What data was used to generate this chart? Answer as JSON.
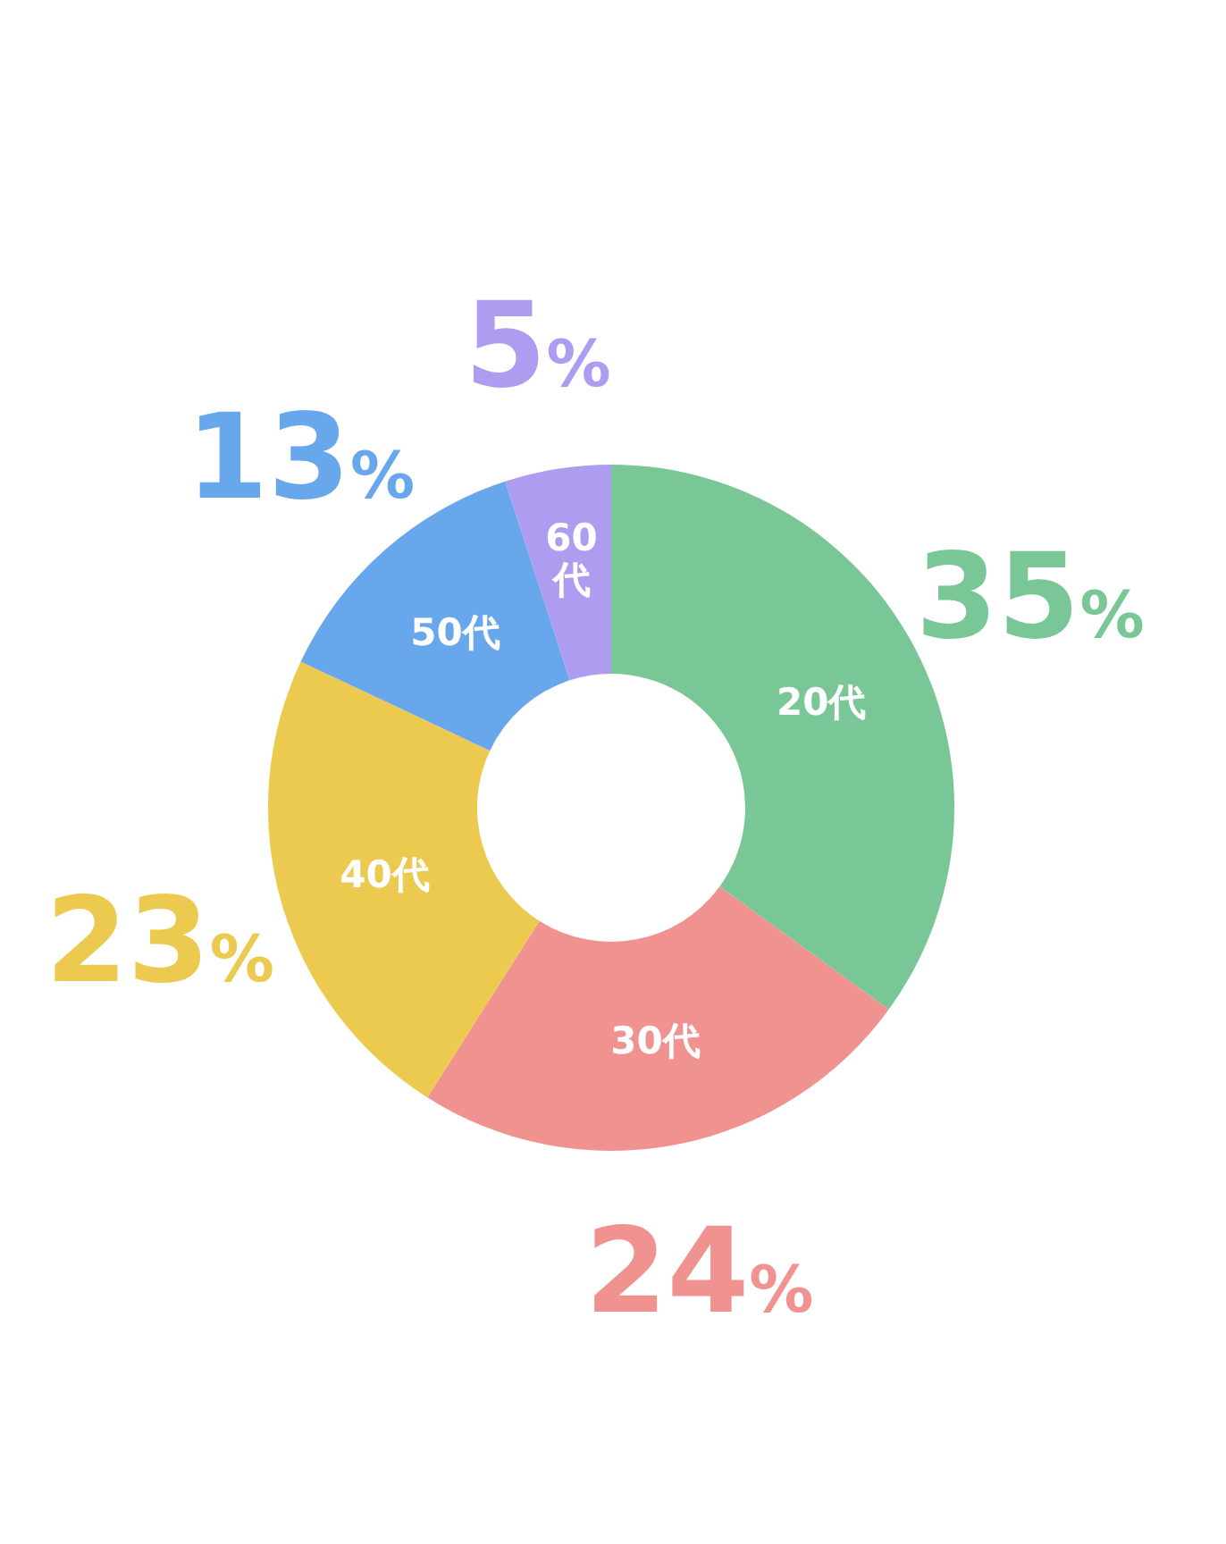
{
  "chart_data": {
    "type": "donut",
    "categories": [
      "20代",
      "30代",
      "40代",
      "50代",
      "60代"
    ],
    "values": [
      35,
      24,
      23,
      13,
      5
    ],
    "colors": [
      "#79c696",
      "#f0928f",
      "#ecc94f",
      "#69a7ec",
      "#ad9cf0"
    ],
    "value_labels": [
      "35%",
      "24%",
      "23%",
      "13%",
      "5%"
    ]
  }
}
